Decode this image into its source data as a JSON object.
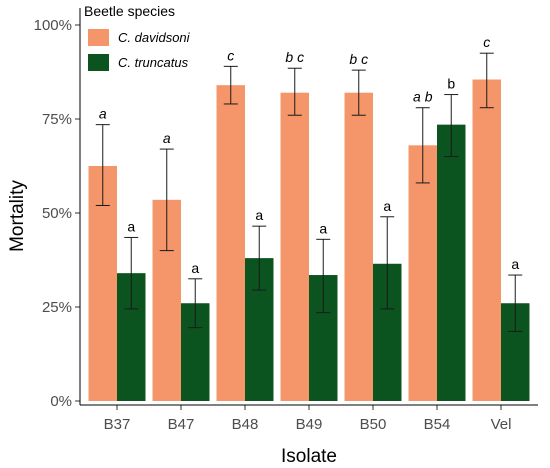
{
  "chart_data": {
    "type": "bar",
    "title": "",
    "xlabel": "Isolate",
    "ylabel": "Mortality",
    "categories": [
      "B37",
      "B47",
      "B48",
      "B49",
      "B50",
      "B54",
      "Vel"
    ],
    "ylim": [
      0,
      100
    ],
    "yticks": [
      0,
      25,
      50,
      75,
      100
    ],
    "ytick_labels": [
      "0%",
      "25%",
      "50%",
      "75%",
      "100%"
    ],
    "grid": false,
    "legend": {
      "title": "Beetle species",
      "position": "top-left"
    },
    "series": [
      {
        "name": "C. davidsoni",
        "color": "#f4956a",
        "values": [
          62.5,
          53.5,
          84,
          82,
          82,
          68,
          85.5
        ],
        "error_low": [
          52,
          40,
          79,
          76,
          76,
          58,
          78
        ],
        "error_high": [
          73.5,
          67,
          89,
          88.5,
          88,
          78,
          92.5
        ],
        "significance": [
          "a",
          "a",
          "c",
          "b c",
          "b c",
          "a b",
          "c"
        ],
        "significance_italic": true
      },
      {
        "name": "C. truncatus",
        "color": "#0b5420",
        "values": [
          34,
          26,
          38,
          33.5,
          36.5,
          73.5,
          26
        ],
        "error_low": [
          24.5,
          19.5,
          29.5,
          23.5,
          24.5,
          65,
          18.5
        ],
        "error_high": [
          43.5,
          32.5,
          46.5,
          43,
          49,
          81.5,
          33.5
        ],
        "significance": [
          "a",
          "a",
          "a",
          "a",
          "a",
          "b",
          "a"
        ],
        "significance_italic": false
      }
    ]
  }
}
